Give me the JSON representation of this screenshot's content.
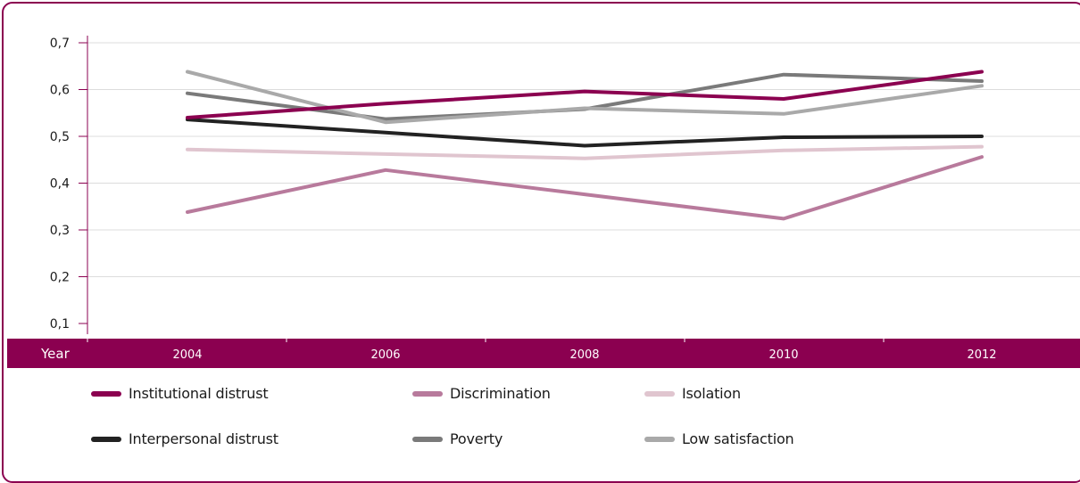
{
  "chart_data": {
    "type": "line",
    "title": "",
    "xlabel": "Year",
    "ylabel": "",
    "x": [
      "2004",
      "2006",
      "2008",
      "2010",
      "2012"
    ],
    "y_ticks": [
      "0,1",
      "0,2",
      "0,3",
      "0,4",
      "0,5",
      "0,6",
      "0,7"
    ],
    "ylim": [
      0.1,
      0.7
    ],
    "grid": true,
    "legend_position": "bottom",
    "series": [
      {
        "name": "Institutional distrust",
        "color": "#8b0050",
        "values": [
          0.54,
          0.57,
          0.596,
          0.58,
          0.638
        ]
      },
      {
        "name": "Discrimination",
        "color": "#b87a9c",
        "values": [
          0.338,
          0.428,
          0.376,
          0.324,
          0.456
        ]
      },
      {
        "name": "Isolation",
        "color": "#e0c5cf",
        "values": [
          0.472,
          0.462,
          0.453,
          0.47,
          0.478
        ]
      },
      {
        "name": "Interpersonal distrust",
        "color": "#222222",
        "values": [
          0.536,
          0.508,
          0.48,
          0.498,
          0.5
        ]
      },
      {
        "name": "Poverty",
        "color": "#7a7a7a",
        "values": [
          0.592,
          0.537,
          0.558,
          0.632,
          0.618
        ]
      },
      {
        "name": "Low satisfaction",
        "color": "#a9a9a9",
        "values": [
          0.638,
          0.53,
          0.56,
          0.548,
          0.608
        ]
      }
    ]
  }
}
